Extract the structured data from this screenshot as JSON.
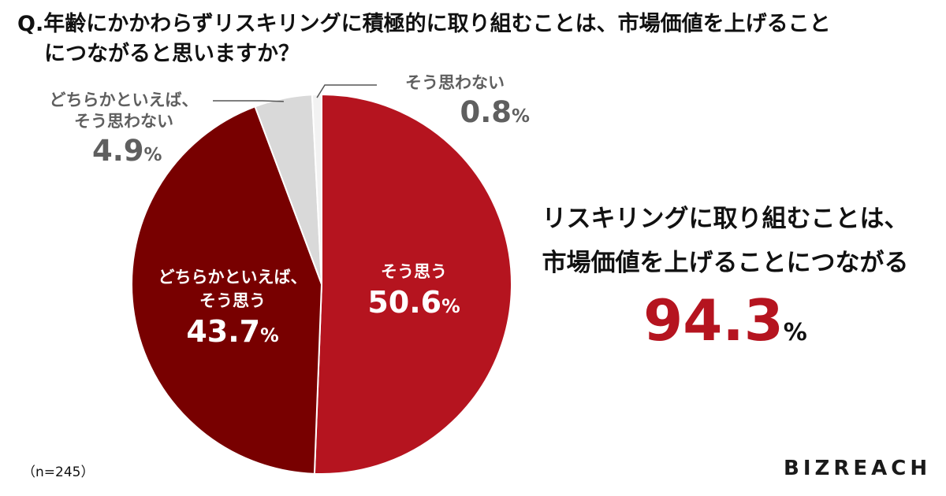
{
  "question": {
    "line1": "Q.年齢にかかわらずリスキリングに積極的に取り組むことは、市場価値を上げること",
    "line2": "につながると思いますか？"
  },
  "chart_data": {
    "type": "pie",
    "title": "Q.年齢にかかわらずリスキリングに積極的に取り組むことは、市場価値を上げることにつながると思いますか？",
    "categories": [
      "そう思う",
      "どちらかといえば、そう思う",
      "どちらかといえば、そう思わない",
      "そう思わない"
    ],
    "values": [
      50.6,
      43.7,
      4.9,
      0.8
    ],
    "colors": [
      "#b5141f",
      "#780000",
      "#d9d9d9",
      "#f2f2f2"
    ],
    "start": "12 o'clock",
    "direction": "clockwise",
    "slices": [
      {
        "name": "そう思う",
        "value": 50.6,
        "value_text": "50.6",
        "unit": "%"
      },
      {
        "name_line1": "どちらかといえば、",
        "name_line2": "そう思う",
        "value": 43.7,
        "value_text": "43.7",
        "unit": "%"
      },
      {
        "name_line1": "どちらかといえば、",
        "name_line2": "そう思わない",
        "value": 4.9,
        "value_text": "4.9",
        "unit": "%"
      },
      {
        "name": "そう思わない",
        "value": 0.8,
        "value_text": "0.8",
        "unit": "%"
      }
    ]
  },
  "summary": {
    "line1": "リスキリングに取り組むことは、",
    "line2": "市場価値を上げることにつながる",
    "value": "94.3",
    "unit": "%"
  },
  "sample_size": "（n=245）",
  "brand": "BIZREACH"
}
